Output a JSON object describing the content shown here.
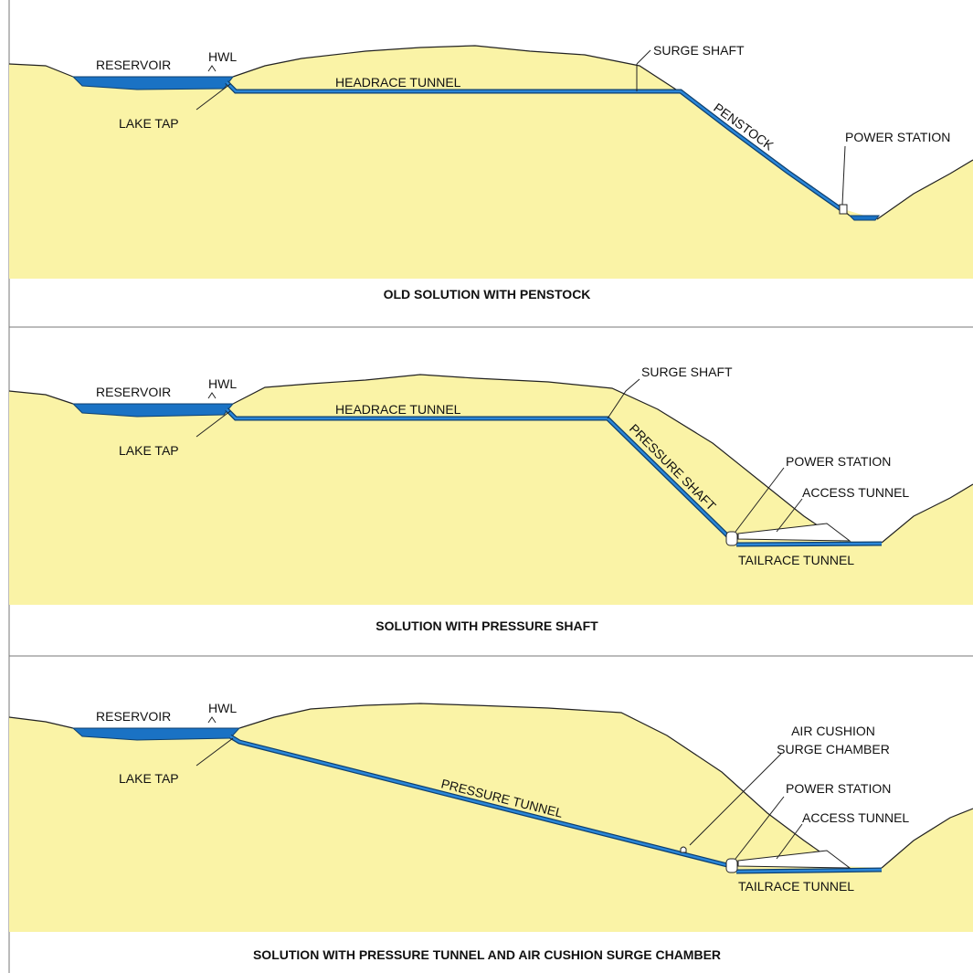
{
  "panels": [
    {
      "title": "OLD SOLUTION WITH PENSTOCK",
      "labels": [
        "RESERVOIR",
        "HWL",
        "LAKE TAP",
        "HEADRACE TUNNEL",
        "SURGE SHAFT",
        "PENSTOCK",
        "POWER STATION"
      ]
    },
    {
      "title": "SOLUTION WITH PRESSURE SHAFT",
      "labels": [
        "RESERVOIR",
        "HWL",
        "LAKE TAP",
        "HEADRACE TUNNEL",
        "SURGE SHAFT",
        "PRESSURE SHAFT",
        "POWER STATION",
        "ACCESS TUNNEL",
        "TAILRACE TUNNEL"
      ]
    },
    {
      "title": "SOLUTION WITH PRESSURE TUNNEL AND AIR CUSHION SURGE CHAMBER",
      "labels": [
        "RESERVOIR",
        "HWL",
        "LAKE TAP",
        "PRESSURE TUNNEL",
        "AIR CUSHION",
        "SURGE CHAMBER",
        "POWER STATION",
        "ACCESS TUNNEL",
        "TAILRACE TUNNEL"
      ]
    }
  ]
}
